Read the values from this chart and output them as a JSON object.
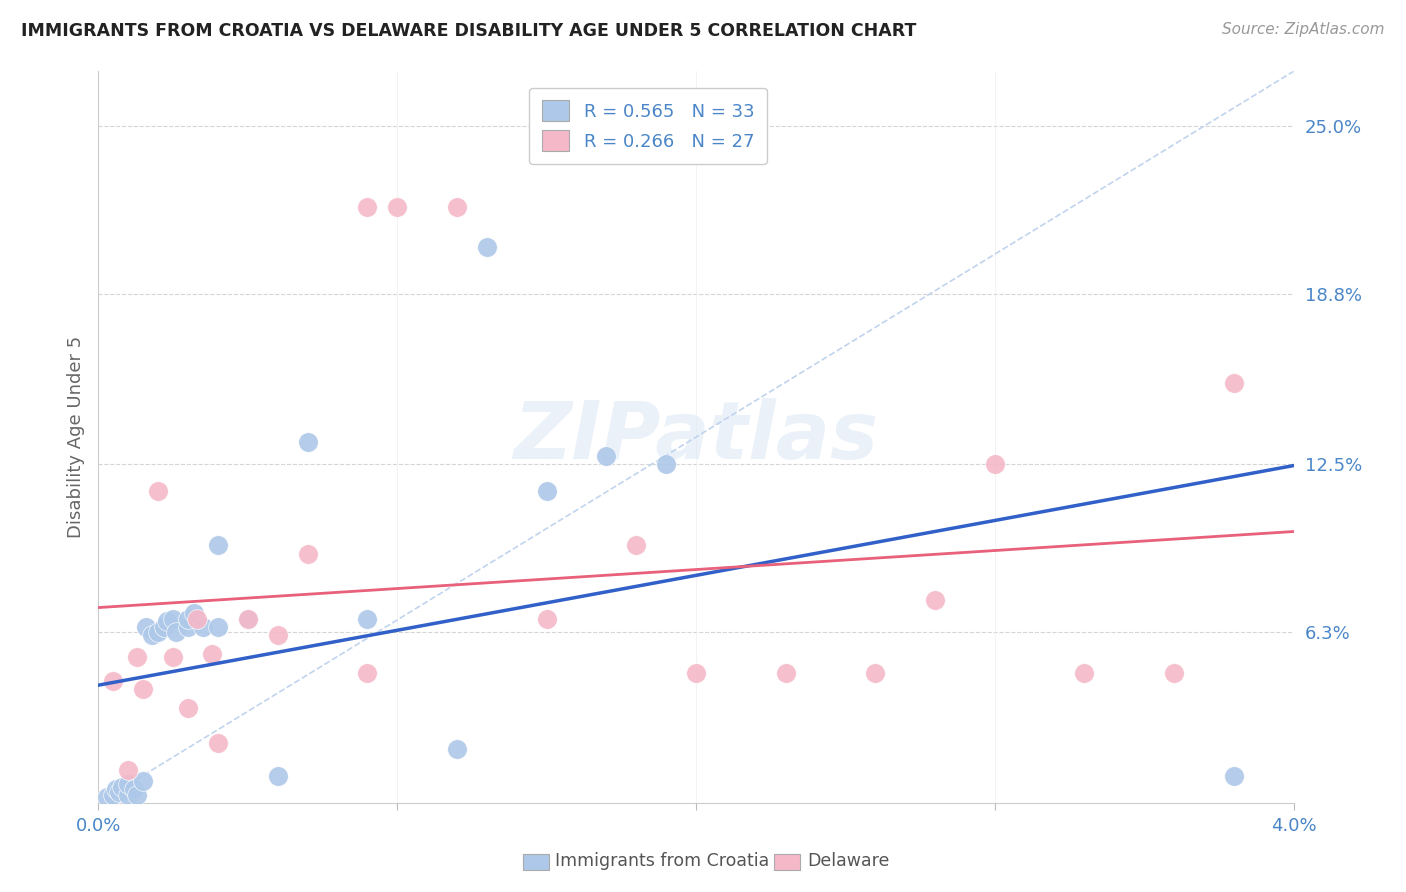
{
  "title": "IMMIGRANTS FROM CROATIA VS DELAWARE DISABILITY AGE UNDER 5 CORRELATION CHART",
  "source": "Source: ZipAtlas.com",
  "ylabel": "Disability Age Under 5",
  "ytick_labels": [
    "25.0%",
    "18.8%",
    "12.5%",
    "6.3%"
  ],
  "ytick_values": [
    0.25,
    0.188,
    0.125,
    0.063
  ],
  "xlim": [
    0.0,
    0.04
  ],
  "ylim": [
    0.0,
    0.27
  ],
  "croatia_color": "#adc8e8",
  "delaware_color": "#f5b8c8",
  "croatia_line_color": "#3060c8",
  "delaware_line_color": "#e8607a",
  "diagonal_color": "#c0d4ee",
  "watermark_text": "ZIPatlas",
  "legend_label1": "Immigrants from Croatia",
  "legend_label2": "Delaware",
  "croatia_points": [
    [
      0.0003,
      0.002
    ],
    [
      0.0005,
      0.003
    ],
    [
      0.0006,
      0.005
    ],
    [
      0.0007,
      0.004
    ],
    [
      0.0008,
      0.006
    ],
    [
      0.001,
      0.003
    ],
    [
      0.001,
      0.007
    ],
    [
      0.0012,
      0.005
    ],
    [
      0.0013,
      0.003
    ],
    [
      0.0015,
      0.008
    ],
    [
      0.0016,
      0.065
    ],
    [
      0.0018,
      0.062
    ],
    [
      0.002,
      0.063
    ],
    [
      0.0022,
      0.065
    ],
    [
      0.0023,
      0.067
    ],
    [
      0.0025,
      0.068
    ],
    [
      0.0026,
      0.063
    ],
    [
      0.003,
      0.065
    ],
    [
      0.003,
      0.068
    ],
    [
      0.0032,
      0.07
    ],
    [
      0.0035,
      0.065
    ],
    [
      0.004,
      0.095
    ],
    [
      0.004,
      0.065
    ],
    [
      0.005,
      0.068
    ],
    [
      0.006,
      0.01
    ],
    [
      0.007,
      0.133
    ],
    [
      0.009,
      0.068
    ],
    [
      0.012,
      0.02
    ],
    [
      0.013,
      0.205
    ],
    [
      0.015,
      0.115
    ],
    [
      0.017,
      0.128
    ],
    [
      0.019,
      0.125
    ],
    [
      0.038,
      0.01
    ]
  ],
  "delaware_points": [
    [
      0.0005,
      0.045
    ],
    [
      0.001,
      0.012
    ],
    [
      0.0013,
      0.054
    ],
    [
      0.0015,
      0.042
    ],
    [
      0.002,
      0.115
    ],
    [
      0.0025,
      0.054
    ],
    [
      0.003,
      0.035
    ],
    [
      0.0033,
      0.068
    ],
    [
      0.0038,
      0.055
    ],
    [
      0.004,
      0.022
    ],
    [
      0.005,
      0.068
    ],
    [
      0.006,
      0.062
    ],
    [
      0.007,
      0.092
    ],
    [
      0.009,
      0.048
    ],
    [
      0.009,
      0.22
    ],
    [
      0.01,
      0.22
    ],
    [
      0.012,
      0.22
    ],
    [
      0.015,
      0.068
    ],
    [
      0.018,
      0.095
    ],
    [
      0.02,
      0.048
    ],
    [
      0.023,
      0.048
    ],
    [
      0.026,
      0.048
    ],
    [
      0.028,
      0.075
    ],
    [
      0.03,
      0.125
    ],
    [
      0.033,
      0.048
    ],
    [
      0.036,
      0.048
    ],
    [
      0.038,
      0.155
    ]
  ]
}
